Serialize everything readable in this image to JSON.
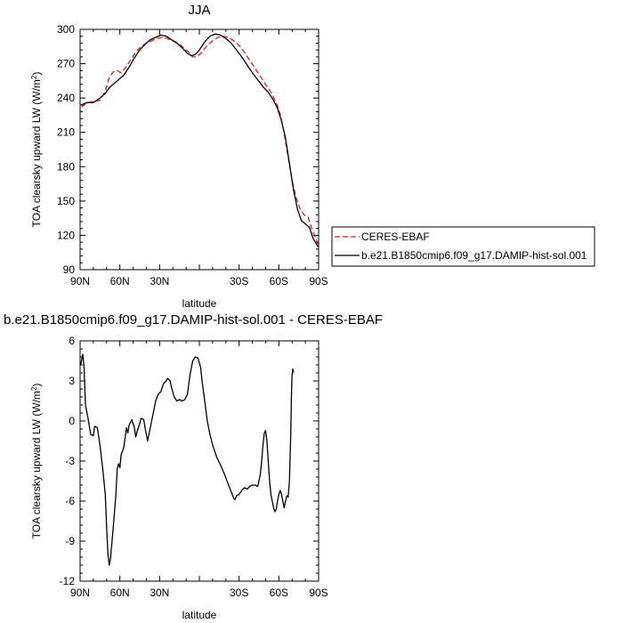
{
  "chart_data": [
    {
      "type": "line",
      "title": "JJA",
      "xlabel": "latitude",
      "ylabel_main": "TOA clearsky upward LW (W/m",
      "ylabel_sup": "2",
      "ylabel_close": ")",
      "xlim": [
        90,
        -90
      ],
      "ylim": [
        90,
        300
      ],
      "xticks": [
        90,
        60,
        30,
        0,
        -30,
        -60,
        -90
      ],
      "xtick_labels": [
        "90N",
        "60N",
        "30N",
        "",
        "30S",
        "60S",
        "90S"
      ],
      "yticks": [
        90,
        120,
        150,
        180,
        210,
        240,
        270,
        300
      ],
      "ytick_labels": [
        "90",
        "120",
        "150",
        "180",
        "210",
        "240",
        "270",
        "300"
      ],
      "grid": false,
      "legend": "right",
      "series": [
        {
          "name": "CERES-EBAF",
          "color": "#e41a1c",
          "dash": "dashed",
          "points": [
            [
              89,
              232
            ],
            [
              85,
              236
            ],
            [
              80,
              237
            ],
            [
              75,
              238
            ],
            [
              71,
              246
            ],
            [
              68,
              258
            ],
            [
              65,
              263
            ],
            [
              62,
              264
            ],
            [
              59,
              262
            ],
            [
              56,
              266
            ],
            [
              52,
              273
            ],
            [
              48,
              280
            ],
            [
              44,
              285
            ],
            [
              40,
              288
            ],
            [
              36,
              290
            ],
            [
              32,
              292
            ],
            [
              28,
              293
            ],
            [
              24,
              292
            ],
            [
              20,
              290
            ],
            [
              16,
              288
            ],
            [
              12,
              284
            ],
            [
              8,
              280
            ],
            [
              5,
              276
            ],
            [
              2,
              276
            ],
            [
              -2,
              280
            ],
            [
              -6,
              286
            ],
            [
              -10,
              290
            ],
            [
              -14,
              293
            ],
            [
              -18,
              294
            ],
            [
              -22,
              293
            ],
            [
              -26,
              290
            ],
            [
              -30,
              286
            ],
            [
              -34,
              280
            ],
            [
              -38,
              273
            ],
            [
              -42,
              266
            ],
            [
              -46,
              259
            ],
            [
              -50,
              252
            ],
            [
              -54,
              245
            ],
            [
              -58,
              236
            ],
            [
              -61,
              226
            ],
            [
              -64,
              209
            ],
            [
              -67,
              188
            ],
            [
              -70,
              168
            ],
            [
              -73,
              153
            ],
            [
              -76,
              143
            ],
            [
              -79,
              138
            ],
            [
              -82,
              136
            ],
            [
              -85,
              125
            ],
            [
              -88,
              117
            ],
            [
              -89.5,
              112
            ]
          ]
        },
        {
          "name": "b.e21.B1850cmip6.f09_g17.DAMIP-hist-sol.001",
          "color": "#000000",
          "dash": "solid",
          "points": [
            [
              89,
              234
            ],
            [
              85,
              236
            ],
            [
              80,
              236
            ],
            [
              75,
              240
            ],
            [
              71,
              244
            ],
            [
              68,
              249
            ],
            [
              65,
              252
            ],
            [
              61,
              256
            ],
            [
              57,
              260
            ],
            [
              53,
              267
            ],
            [
              49,
              275
            ],
            [
              45,
              282
            ],
            [
              41,
              287
            ],
            [
              37,
              291
            ],
            [
              33,
              293
            ],
            [
              29,
              295
            ],
            [
              25,
              294
            ],
            [
              21,
              291
            ],
            [
              17,
              288
            ],
            [
              13,
              284
            ],
            [
              9,
              279
            ],
            [
              6,
              277
            ],
            [
              3,
              278
            ],
            [
              0,
              282
            ],
            [
              -4,
              289
            ],
            [
              -8,
              294
            ],
            [
              -12,
              296
            ],
            [
              -16,
              295
            ],
            [
              -20,
              292
            ],
            [
              -24,
              288
            ],
            [
              -28,
              282
            ],
            [
              -32,
              276
            ],
            [
              -36,
              269
            ],
            [
              -40,
              262
            ],
            [
              -44,
              256
            ],
            [
              -48,
              250
            ],
            [
              -52,
              245
            ],
            [
              -56,
              238
            ],
            [
              -59,
              231
            ],
            [
              -62,
              220
            ],
            [
              -65,
              205
            ],
            [
              -68,
              183
            ],
            [
              -71,
              160
            ],
            [
              -74,
              143
            ],
            [
              -77,
              133
            ],
            [
              -80,
              130
            ],
            [
              -83,
              127
            ],
            [
              -86,
              117
            ],
            [
              -89.5,
              110
            ]
          ]
        }
      ]
    },
    {
      "type": "line",
      "title": "b.e21.B1850cmip6.f09_g17.DAMIP-hist-sol.001 - CERES-EBAF",
      "xlabel": "latitude",
      "ylabel_main": "TOA clearsky upward LW (W/m",
      "ylabel_sup": "2",
      "ylabel_close": ")",
      "xlim": [
        90,
        -90
      ],
      "ylim": [
        -12,
        6
      ],
      "xticks": [
        90,
        60,
        30,
        0,
        -30,
        -60,
        -90
      ],
      "xtick_labels": [
        "90N",
        "60N",
        "30N",
        "",
        "30S",
        "60S",
        "90S"
      ],
      "yticks": [
        -12,
        -9,
        -6,
        -3,
        0,
        3,
        6
      ],
      "ytick_labels": [
        "-12",
        "-9",
        "-6",
        "-3",
        "0",
        "3",
        "6"
      ],
      "grid": false,
      "legend": "none",
      "series": [
        {
          "color": "#000000",
          "dash": "solid",
          "points": [
            [
              89.5,
              4.2
            ],
            [
              88,
              5.0
            ],
            [
              87,
              4.0
            ],
            [
              86,
              1.2
            ],
            [
              84,
              0.2
            ],
            [
              82,
              -1.0
            ],
            [
              80,
              -1.1
            ],
            [
              79,
              -0.4
            ],
            [
              77,
              -0.5
            ],
            [
              75,
              -1.8
            ],
            [
              73,
              -3.5
            ],
            [
              71,
              -5.5
            ],
            [
              70,
              -8.0
            ],
            [
              69,
              -10.0
            ],
            [
              68,
              -10.8
            ],
            [
              67,
              -10.3
            ],
            [
              65,
              -8.0
            ],
            [
              63,
              -5.5
            ],
            [
              62,
              -3.6
            ],
            [
              61,
              -3.2
            ],
            [
              60,
              -3.5
            ],
            [
              59,
              -2.5
            ],
            [
              57,
              -2.0
            ],
            [
              55,
              -0.5
            ],
            [
              54,
              -0.9
            ],
            [
              53,
              -0.3
            ],
            [
              51,
              0.1
            ],
            [
              49,
              -0.5
            ],
            [
              48,
              -1.2
            ],
            [
              47,
              -0.8
            ],
            [
              45,
              -0.2
            ],
            [
              44,
              0.2
            ],
            [
              42,
              0.1
            ],
            [
              41,
              -0.5
            ],
            [
              40,
              -1.0
            ],
            [
              39,
              -1.5
            ],
            [
              38,
              -1.0
            ],
            [
              37,
              -0.5
            ],
            [
              35,
              0.5
            ],
            [
              33,
              1.5
            ],
            [
              31,
              2.0
            ],
            [
              29,
              2.2
            ],
            [
              27,
              2.8
            ],
            [
              25,
              3.0
            ],
            [
              24,
              3.2
            ],
            [
              22,
              3.0
            ],
            [
              21,
              2.5
            ],
            [
              19,
              1.8
            ],
            [
              17,
              1.5
            ],
            [
              15,
              1.6
            ],
            [
              13,
              1.5
            ],
            [
              11,
              1.6
            ],
            [
              9,
              2.0
            ],
            [
              7,
              3.5
            ],
            [
              5,
              4.5
            ],
            [
              3,
              4.8
            ],
            [
              1,
              4.7
            ],
            [
              -1,
              4.0
            ],
            [
              -2,
              3.0
            ],
            [
              -4,
              1.5
            ],
            [
              -6,
              0.0
            ],
            [
              -8,
              -1.0
            ],
            [
              -10,
              -1.8
            ],
            [
              -13,
              -2.7
            ],
            [
              -16,
              -3.3
            ],
            [
              -19,
              -4.0
            ],
            [
              -22,
              -4.8
            ],
            [
              -24,
              -5.3
            ],
            [
              -26,
              -5.8
            ],
            [
              -27,
              -5.9
            ],
            [
              -28,
              -5.6
            ],
            [
              -30,
              -5.5
            ],
            [
              -32,
              -5.2
            ],
            [
              -34,
              -5.0
            ],
            [
              -36,
              -5.1
            ],
            [
              -38,
              -4.9
            ],
            [
              -40,
              -4.8
            ],
            [
              -42,
              -4.8
            ],
            [
              -44,
              -4.9
            ],
            [
              -45,
              -4.5
            ],
            [
              -46,
              -4.0
            ],
            [
              -47,
              -3.0
            ],
            [
              -48,
              -1.8
            ],
            [
              -49,
              -0.9
            ],
            [
              -50,
              -0.7
            ],
            [
              -51,
              -1.5
            ],
            [
              -52,
              -3.0
            ],
            [
              -53,
              -4.5
            ],
            [
              -54,
              -5.5
            ],
            [
              -55,
              -6.0
            ],
            [
              -56,
              -6.5
            ],
            [
              -57,
              -6.8
            ],
            [
              -58,
              -6.6
            ],
            [
              -59,
              -6.0
            ],
            [
              -60,
              -5.5
            ],
            [
              -61,
              -5.2
            ],
            [
              -62,
              -5.5
            ],
            [
              -63,
              -6.0
            ],
            [
              -64,
              -6.5
            ],
            [
              -65,
              -6.0
            ],
            [
              -66,
              -5.6
            ],
            [
              -67,
              -5.7
            ],
            [
              -68,
              -4.5
            ],
            [
              -69,
              -1.0
            ],
            [
              -69.5,
              2.0
            ],
            [
              -70,
              3.5
            ],
            [
              -70.5,
              3.9
            ],
            [
              -71,
              3.6
            ]
          ]
        }
      ]
    }
  ]
}
